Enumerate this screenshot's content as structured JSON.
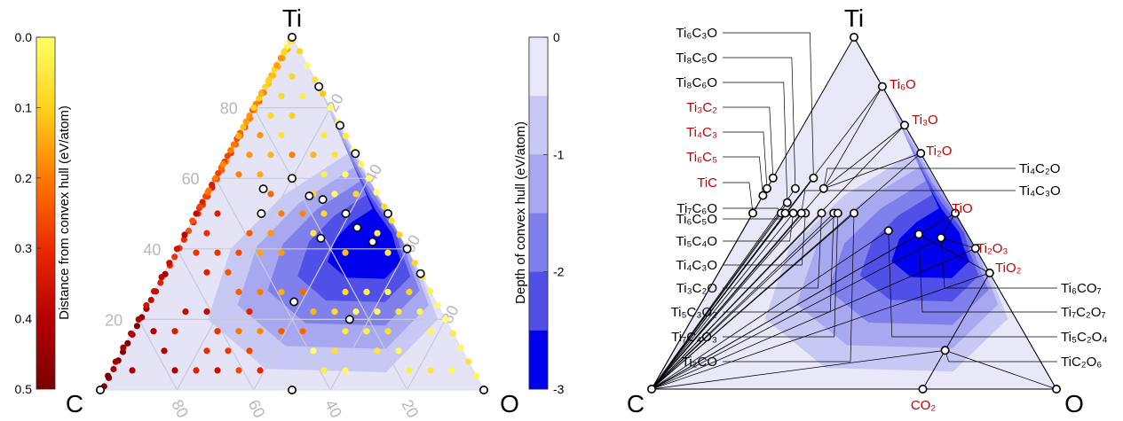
{
  "chart_data": [
    {
      "type": "scatter",
      "title": "",
      "corners": {
        "top": "Ti",
        "left": "C",
        "right": "O"
      },
      "edge_ticks": {
        "ti_axis": [
          "20",
          "40",
          "60",
          "80"
        ],
        "c_axis": [
          "80",
          "60",
          "40",
          "20"
        ],
        "o_axis": [
          "20",
          "40",
          "60",
          "80"
        ]
      },
      "colorbar_distance": {
        "title": "Distance from convex hull (eV/atom)",
        "range": [
          0.0,
          0.5
        ],
        "ticks": [
          "0.0",
          "0.1",
          "0.2",
          "0.3",
          "0.4",
          "0.5"
        ],
        "colors": [
          "#ffff66",
          "#ffd21e",
          "#ff7a00",
          "#ec2a00",
          "#b60000",
          "#7a0000"
        ]
      },
      "colorbar_depth": {
        "title": "Depth of convex hull (eV/atom)",
        "range": [
          -3,
          0
        ],
        "ticks": [
          "0",
          "-1",
          "-2",
          "-3"
        ],
        "colors": [
          "#e8e8f8",
          "#c8c8f4",
          "#a8a8f0",
          "#8080ec",
          "#5050e8",
          "#0000ee"
        ]
      },
      "hull_points_ti_o_percent": [
        [
          100,
          0
        ],
        [
          0,
          0
        ],
        [
          0,
          100
        ],
        [
          86,
          14
        ],
        [
          75,
          25
        ],
        [
          67,
          33
        ],
        [
          50,
          50
        ],
        [
          40,
          60
        ],
        [
          33,
          67
        ],
        [
          60,
          20
        ],
        [
          57,
          14
        ],
        [
          50,
          17
        ],
        [
          55,
          27
        ],
        [
          54,
          31
        ],
        [
          50,
          39
        ],
        [
          46,
          44
        ],
        [
          43,
          36
        ],
        [
          42,
          50
        ],
        [
          25,
          38
        ],
        [
          20,
          55
        ],
        [
          0,
          50
        ]
      ]
    },
    {
      "type": "scatter",
      "title": "",
      "corners": {
        "top": "Ti",
        "left": "C",
        "right": "O"
      },
      "stable_phases": [
        {
          "label": "Ti₆C₃O",
          "ti": 60,
          "o": 10
        },
        {
          "label": "Ti₈C₅O",
          "ti": 57,
          "o": 7
        },
        {
          "label": "Ti₈C₆O",
          "ti": 53,
          "o": 7
        },
        {
          "label": "Ti₃C₂",
          "ti": 60,
          "o": 0
        },
        {
          "label": "Ti₄C₃",
          "ti": 57,
          "o": 0
        },
        {
          "label": "Ti₆C₅",
          "ti": 55,
          "o": 0
        },
        {
          "label": "TiC",
          "ti": 50,
          "o": 0
        },
        {
          "label": "Ti₇C₆O",
          "ti": 50,
          "o": 7
        },
        {
          "label": "Ti₆C₅O",
          "ti": 50,
          "o": 8
        },
        {
          "label": "Ti₅C₄O",
          "ti": 50,
          "o": 10
        },
        {
          "label": "Ti₄C₃O",
          "ti": 50,
          "o": 13
        },
        {
          "label": "Ti₃C₂O",
          "ti": 50,
          "o": 17
        },
        {
          "label": "Ti₅C₃O₂",
          "ti": 50,
          "o": 20
        },
        {
          "label": "Ti₇C₄O₃",
          "ti": 50,
          "o": 21
        },
        {
          "label": "Ti₂CO",
          "ti": 50,
          "o": 25
        },
        {
          "label": "Ti₆O",
          "ti": 86,
          "o": 14
        },
        {
          "label": "Ti₃O",
          "ti": 75,
          "o": 25
        },
        {
          "label": "Ti₂O",
          "ti": 67,
          "o": 33
        },
        {
          "label": "TiO",
          "ti": 50,
          "o": 50
        },
        {
          "label": "Ti₂O₃",
          "ti": 40,
          "o": 60
        },
        {
          "label": "TiO₂",
          "ti": 33,
          "o": 67
        },
        {
          "label": "Ti₄C₂O",
          "ti": 57,
          "o": 14
        },
        {
          "label": "Ti₄C₃O",
          "ti": 50,
          "o": 12
        },
        {
          "label": "Ti₆CO₇",
          "ti": 43,
          "o": 50
        },
        {
          "label": "Ti₇C₂O₇",
          "ti": 44,
          "o": 44
        },
        {
          "label": "Ti₅C₂O₄",
          "ti": 45,
          "o": 36
        },
        {
          "label": "TiC₂O₆",
          "ti": 11,
          "o": 67
        },
        {
          "label": "CO₂",
          "ti": 0,
          "o": 67
        }
      ],
      "label_colors": {
        "known": "#c00000",
        "new": "#000000"
      }
    }
  ]
}
